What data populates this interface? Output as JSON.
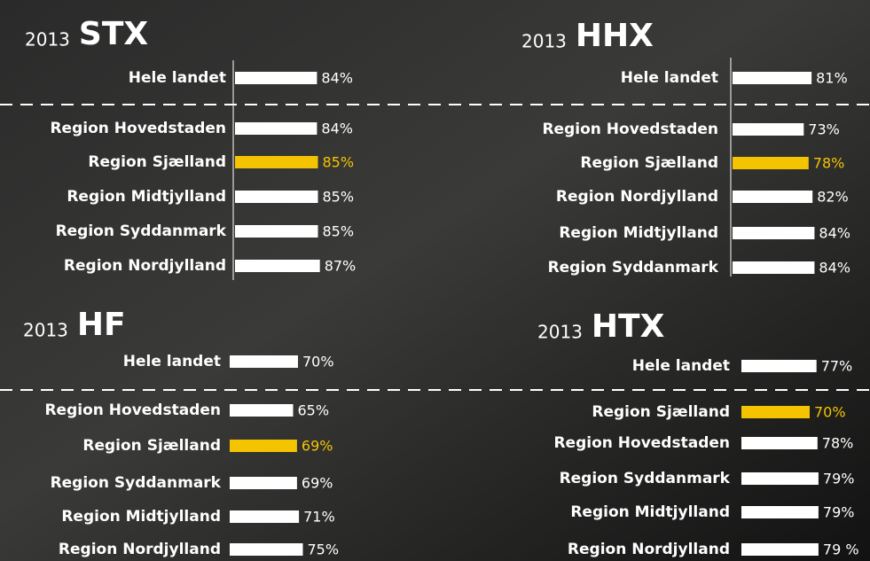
{
  "chart_data": [
    {
      "type": "bar",
      "orientation": "horizontal",
      "subtitle": "2013",
      "title": "STX",
      "categories": [
        "Hele landet",
        "Region Hovedstaden",
        "Region Sjælland",
        "Region Midtjylland",
        "Region Syddanmark",
        "Region Nordjylland"
      ],
      "values": [
        84,
        84,
        85,
        85,
        85,
        87
      ],
      "value_labels": [
        "84%",
        "84%",
        "85%",
        "85%",
        "85%",
        "87%"
      ],
      "colors": [
        "#ffffff",
        "#ffffff",
        "#f5c400",
        "#ffffff",
        "#ffffff",
        "#ffffff"
      ]
    },
    {
      "type": "bar",
      "orientation": "horizontal",
      "subtitle": "2013",
      "title": "HHX",
      "categories": [
        "Hele landet",
        "Region Hovedstaden",
        "Region Sjælland",
        "Region Nordjylland",
        "Region Midtjylland",
        "Region Syddanmark"
      ],
      "values": [
        81,
        73,
        78,
        82,
        84,
        84
      ],
      "value_labels": [
        "81%",
        "73%",
        "78%",
        "82%",
        "84%",
        "84%"
      ],
      "colors": [
        "#ffffff",
        "#ffffff",
        "#f5c400",
        "#ffffff",
        "#ffffff",
        "#ffffff"
      ]
    },
    {
      "type": "bar",
      "orientation": "horizontal",
      "subtitle": "2013",
      "title": "HF",
      "categories": [
        "Hele landet",
        "Region Hovedstaden",
        "Region Sjælland",
        "Region Syddanmark",
        "Region Midtjylland",
        "Region Nordjylland"
      ],
      "values": [
        70,
        65,
        69,
        69,
        71,
        75
      ],
      "value_labels": [
        "70%",
        "65%",
        "69%",
        "69%",
        "71%",
        "75%"
      ],
      "colors": [
        "#ffffff",
        "#ffffff",
        "#f5c400",
        "#ffffff",
        "#ffffff",
        "#ffffff"
      ]
    },
    {
      "type": "bar",
      "orientation": "horizontal",
      "subtitle": "2013",
      "title": "HTX",
      "categories": [
        "Hele landet",
        "Region Sjælland",
        "Region Hovedstaden",
        "Region Syddanmark",
        "Region Midtjylland",
        "Region Nordjylland"
      ],
      "values": [
        77,
        70,
        78,
        79,
        79,
        79
      ],
      "value_labels": [
        "77%",
        "70%",
        "78%",
        "79%",
        "79%",
        "79 %"
      ],
      "colors": [
        "#ffffff",
        "#f5c400",
        "#ffffff",
        "#ffffff",
        "#ffffff",
        "#ffffff"
      ]
    }
  ]
}
